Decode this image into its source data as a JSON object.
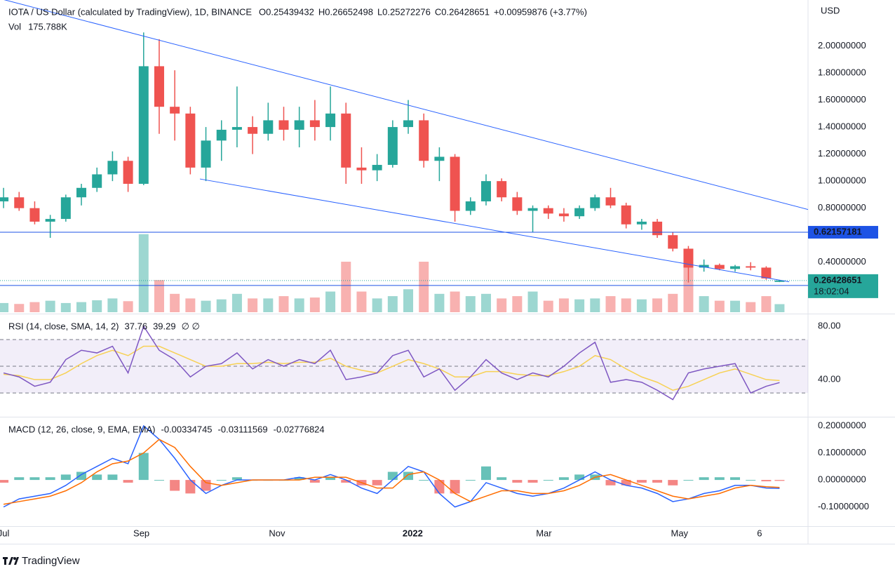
{
  "brand": "TradingView",
  "chart_data": [
    {
      "type": "candlestick",
      "title": "IOTA / US Dollar (calculated by TradingView), 1D, BINANCE",
      "ohlc_legend": [
        {
          "label": "O",
          "value": 0.25439432
        },
        {
          "label": "H",
          "value": 0.26652498
        },
        {
          "label": "L",
          "value": 0.25272276
        },
        {
          "label": "C",
          "value": 0.26428651
        }
      ],
      "change": "+0.00959876 (+3.77%)",
      "volume_title": "Vol",
      "volume_label": "175.788K",
      "axis_unit": "USD",
      "x": [
        1,
        8,
        15,
        22,
        29,
        36,
        43,
        50,
        57,
        64,
        71,
        78,
        85,
        92,
        99,
        106,
        113,
        120,
        127,
        134,
        141,
        148,
        155,
        162,
        169,
        176,
        183,
        190,
        197,
        204,
        211,
        218,
        225,
        232,
        239,
        246,
        253,
        260,
        267,
        274,
        281,
        288,
        295,
        302,
        309,
        316,
        323,
        330,
        337,
        344,
        350
      ],
      "open": [
        0.85,
        0.88,
        0.8,
        0.7,
        0.72,
        0.88,
        0.95,
        1.05,
        1.15,
        0.98,
        1.85,
        1.55,
        1.5,
        1.1,
        1.3,
        1.38,
        1.4,
        1.35,
        1.45,
        1.38,
        1.45,
        1.4,
        1.5,
        1.1,
        1.08,
        1.12,
        1.4,
        1.45,
        1.15,
        1.18,
        0.78,
        0.85,
        1.0,
        0.88,
        0.78,
        0.8,
        0.76,
        0.74,
        0.8,
        0.88,
        0.82,
        0.68,
        0.7,
        0.6,
        0.5,
        0.36,
        0.38,
        0.35,
        0.37,
        0.36,
        0.25439432
      ],
      "high": [
        0.95,
        0.92,
        0.85,
        0.75,
        0.9,
        0.98,
        1.1,
        1.22,
        1.18,
        2.1,
        2.05,
        1.82,
        1.55,
        1.4,
        1.45,
        1.7,
        1.48,
        1.58,
        1.55,
        1.55,
        1.6,
        1.7,
        1.58,
        1.25,
        1.2,
        1.45,
        1.6,
        1.5,
        1.25,
        1.2,
        0.88,
        1.05,
        1.02,
        0.92,
        0.82,
        0.82,
        0.8,
        0.82,
        0.9,
        0.95,
        0.84,
        0.72,
        0.72,
        0.62,
        0.52,
        0.42,
        0.39,
        0.38,
        0.4,
        0.37,
        0.26652498
      ],
      "low": [
        0.8,
        0.78,
        0.68,
        0.58,
        0.7,
        0.82,
        0.92,
        1.0,
        0.92,
        0.97,
        1.35,
        1.3,
        1.05,
        1.0,
        1.15,
        1.25,
        1.2,
        1.3,
        1.3,
        1.25,
        1.3,
        1.3,
        0.98,
        0.98,
        1.0,
        1.1,
        1.35,
        1.1,
        1.0,
        0.7,
        0.75,
        0.82,
        0.85,
        0.75,
        0.62,
        0.72,
        0.7,
        0.72,
        0.78,
        0.8,
        0.65,
        0.64,
        0.58,
        0.48,
        0.25,
        0.33,
        0.34,
        0.33,
        0.34,
        0.27,
        0.25272276
      ],
      "close": [
        0.88,
        0.8,
        0.7,
        0.72,
        0.88,
        0.95,
        1.05,
        1.15,
        0.98,
        1.85,
        1.55,
        1.5,
        1.1,
        1.3,
        1.38,
        1.4,
        1.35,
        1.45,
        1.38,
        1.45,
        1.4,
        1.5,
        1.1,
        1.08,
        1.12,
        1.4,
        1.45,
        1.15,
        1.18,
        0.78,
        0.85,
        1.0,
        0.88,
        0.78,
        0.8,
        0.76,
        0.74,
        0.8,
        0.88,
        0.82,
        0.68,
        0.7,
        0.6,
        0.5,
        0.36,
        0.38,
        0.35,
        0.37,
        0.36,
        0.28,
        0.26428651
      ],
      "volume": [
        200,
        180,
        220,
        250,
        200,
        220,
        260,
        300,
        240,
        1700,
        700,
        400,
        300,
        250,
        280,
        400,
        300,
        300,
        350,
        300,
        320,
        450,
        1100,
        450,
        300,
        350,
        500,
        1100,
        400,
        450,
        350,
        400,
        300,
        350,
        450,
        250,
        300,
        280,
        300,
        350,
        300,
        280,
        300,
        400,
        1000,
        350,
        250,
        250,
        220,
        350,
        175.788
      ],
      "up_color": "#26a69a",
      "down_color": "#ef5350",
      "xlim": [
        -0.6,
        362.8
      ],
      "ylim": [
        0.03,
        2.34
      ],
      "vlim": [
        0,
        6800
      ],
      "xticks": [
        {
          "value": 1,
          "label": "Jul"
        },
        {
          "value": 63,
          "label": "Sep"
        },
        {
          "value": 124,
          "label": "Nov"
        },
        {
          "value": 185,
          "label": "2022"
        },
        {
          "value": 244,
          "label": "Mar"
        },
        {
          "value": 305,
          "label": "May"
        },
        {
          "value": 341,
          "label": "6"
        }
      ],
      "yticks": [
        {
          "value": 0.4,
          "label": "0.40000000"
        },
        {
          "value": 0.8,
          "label": "0.80000000"
        },
        {
          "value": 1.0,
          "label": "1.00000000"
        },
        {
          "value": 1.2,
          "label": "1.20000000"
        },
        {
          "value": 1.4,
          "label": "1.40000000"
        },
        {
          "value": 1.6,
          "label": "1.60000000"
        },
        {
          "value": 1.8,
          "label": "1.80000000"
        },
        {
          "value": 2.0,
          "label": "2.00000000"
        }
      ],
      "horizontal_lines": [
        {
          "value": 0.62157181,
          "color": "#1e53e5"
        },
        {
          "value": 0.22816432,
          "color": "#1e53e5"
        }
      ],
      "last_price_countdown": "18:02:04",
      "trendlines": [
        {
          "x": [
            -0.6,
            362.8
          ],
          "y": [
            2.35,
            0.79
          ],
          "color": "#2962ff"
        },
        {
          "x": [
            89.3,
            354.3
          ],
          "y": [
            1.016,
            0.255
          ],
          "color": "#2962ff"
        }
      ]
    },
    {
      "type": "line",
      "title": "RSI (14, close, SMA, 14, 2)",
      "legend_suffix": "∅   ∅",
      "ylim": [
        13.2,
        87.9
      ],
      "yticks": [
        {
          "value": 80,
          "label": "80.00"
        },
        {
          "value": 40,
          "label": "40.00"
        }
      ],
      "bands": [
        30,
        50,
        70
      ],
      "band_color": "#7e57c2",
      "series": [
        {
          "name": "RSI",
          "color": "#7e57c2",
          "values": [
            45,
            42,
            35,
            38,
            55,
            62,
            60,
            65,
            45,
            80,
            62,
            55,
            42,
            50,
            52,
            60,
            48,
            55,
            50,
            55,
            52,
            62,
            40,
            42,
            45,
            58,
            62,
            42,
            48,
            32,
            42,
            55,
            45,
            40,
            45,
            42,
            50,
            60,
            68,
            38,
            40,
            38,
            32,
            25,
            45,
            48,
            50,
            52,
            30,
            35,
            37.76
          ]
        },
        {
          "name": "SMA",
          "color": "#f7d154",
          "values": [
            44,
            43,
            40,
            40,
            45,
            52,
            58,
            62,
            58,
            65,
            65,
            60,
            55,
            50,
            50,
            52,
            52,
            53,
            52,
            53,
            53,
            56,
            50,
            47,
            45,
            50,
            55,
            52,
            48,
            42,
            42,
            46,
            46,
            44,
            43,
            43,
            46,
            50,
            58,
            55,
            48,
            42,
            38,
            32,
            35,
            40,
            45,
            48,
            44,
            40,
            39.29
          ]
        }
      ]
    },
    {
      "type": "macd",
      "title": "MACD (12, 26, close, 9, EMA, EMA)",
      "ylim": [
        -0.171,
        0.226
      ],
      "yticks": [
        {
          "value": 0.2,
          "label": "0.20000000"
        },
        {
          "value": 0.1,
          "label": "0.10000000"
        },
        {
          "value": 0,
          "label": "0.00000000"
        },
        {
          "value": -0.1,
          "label": "-0.10000000"
        }
      ],
      "histogram": {
        "name": "Histogram",
        "positive_color": "#26a69a",
        "negative_color": "#ef5350",
        "legend_color": "#f7a5b0",
        "values": [
          -0.01,
          0.01,
          0.01,
          0.01,
          0.02,
          0.03,
          0.02,
          0.02,
          -0.01,
          0.1,
          0.0,
          -0.04,
          -0.05,
          -0.04,
          0.0,
          0.01,
          0.0,
          0.0,
          0.0,
          0.01,
          -0.01,
          0.01,
          -0.01,
          -0.02,
          -0.02,
          0.03,
          0.03,
          0.0,
          -0.05,
          -0.05,
          0.0,
          0.05,
          0.01,
          -0.01,
          -0.01,
          0.0,
          0.01,
          0.02,
          0.02,
          -0.02,
          -0.02,
          -0.01,
          -0.01,
          -0.02,
          0.0,
          0.01,
          0.01,
          0.01,
          0.0,
          -0.005,
          -0.00334745
        ]
      },
      "series": [
        {
          "name": "MACD",
          "color": "#2962ff",
          "values": [
            -0.1,
            -0.07,
            -0.06,
            -0.05,
            -0.02,
            0.02,
            0.05,
            0.08,
            0.06,
            0.2,
            0.15,
            0.08,
            0.0,
            -0.05,
            -0.02,
            0.0,
            0.0,
            0.0,
            0.0,
            0.01,
            0.0,
            0.02,
            0.0,
            -0.03,
            -0.05,
            0.0,
            0.05,
            0.03,
            -0.05,
            -0.1,
            -0.08,
            -0.01,
            -0.03,
            -0.05,
            -0.06,
            -0.05,
            -0.03,
            0.0,
            0.03,
            0.0,
            -0.02,
            -0.03,
            -0.05,
            -0.08,
            -0.07,
            -0.05,
            -0.04,
            -0.02,
            -0.02,
            -0.03,
            -0.03111569
          ]
        },
        {
          "name": "Signal",
          "color": "#ff6d00",
          "values": [
            -0.09,
            -0.08,
            -0.07,
            -0.06,
            -0.04,
            -0.01,
            0.03,
            0.06,
            0.07,
            0.1,
            0.15,
            0.12,
            0.05,
            -0.01,
            -0.02,
            -0.01,
            0.0,
            0.0,
            0.0,
            0.0,
            0.01,
            0.01,
            0.01,
            -0.01,
            -0.03,
            -0.03,
            0.02,
            0.03,
            0.0,
            -0.05,
            -0.08,
            -0.06,
            -0.04,
            -0.04,
            -0.05,
            -0.05,
            -0.04,
            -0.02,
            0.01,
            0.02,
            0.0,
            -0.02,
            -0.04,
            -0.06,
            -0.07,
            -0.06,
            -0.05,
            -0.03,
            -0.02,
            -0.025,
            -0.02776824
          ]
        }
      ]
    }
  ]
}
